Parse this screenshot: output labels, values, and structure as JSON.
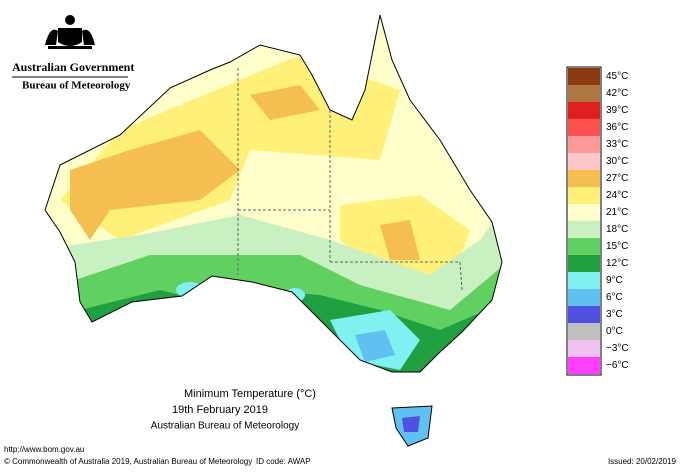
{
  "header": {
    "government": "Australian Government",
    "agency": "Bureau of Meteorology"
  },
  "legend": [
    {
      "label": "45°C",
      "color": "#8b3a12"
    },
    {
      "label": "42°C",
      "color": "#b07840"
    },
    {
      "label": "39°C",
      "color": "#e02020"
    },
    {
      "label": "36°C",
      "color": "#ff5050"
    },
    {
      "label": "33°C",
      "color": "#ff9a9a"
    },
    {
      "label": "30°C",
      "color": "#ffc8c8"
    },
    {
      "label": "27°C",
      "color": "#f5be50"
    },
    {
      "label": "24°C",
      "color": "#fff07a"
    },
    {
      "label": "21°C",
      "color": "#ffffcc"
    },
    {
      "label": "18°C",
      "color": "#c8f0c0"
    },
    {
      "label": "15°C",
      "color": "#60d060"
    },
    {
      "label": "12°C",
      "color": "#20a040"
    },
    {
      "label": "9°C",
      "color": "#80f0f0"
    },
    {
      "label": "6°C",
      "color": "#60c0f0"
    },
    {
      "label": "3°C",
      "color": "#5050e0"
    },
    {
      "label": "0°C",
      "color": "#c0c0c0"
    },
    {
      "label": "−3°C",
      "color": "#f0c0f0"
    },
    {
      "label": "−6°C",
      "color": "#ff40ff"
    }
  ],
  "title": {
    "line1": "Minimum Temperature (°C)",
    "line2": "19th February 2019",
    "line3": "Australian Bureau of Meteorology"
  },
  "footer": {
    "url": "http://www.bom.gov.au",
    "copyright": "© Commonwealth of Australia 2019, Australian Bureau of Meteorology",
    "id_code": "ID code: AWAP",
    "issued": "Issued: 20/02/2019"
  }
}
